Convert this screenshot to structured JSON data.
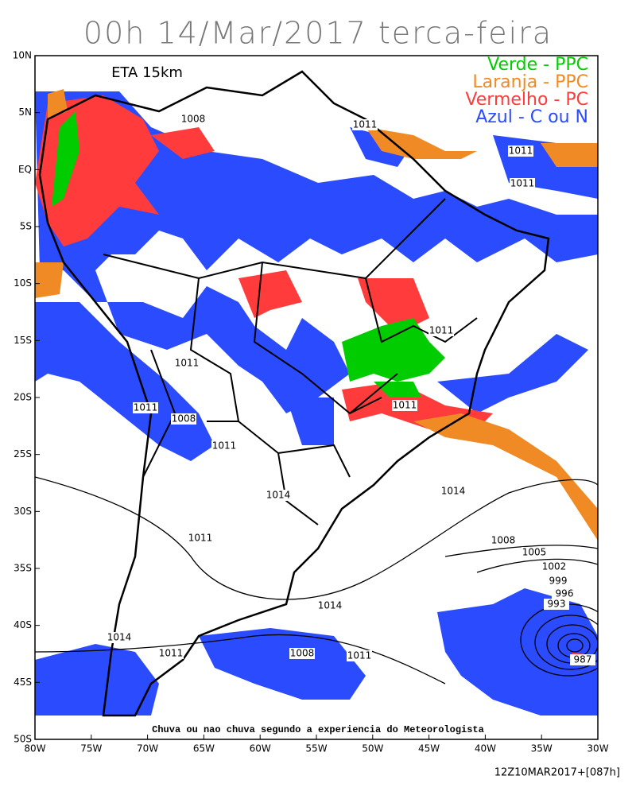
{
  "chart_data": {
    "type": "map",
    "title": "00h 14/Mar/2017 terca-feira",
    "subtitle": "ETA 15km",
    "legend": [
      {
        "name": "Verde - PPC",
        "color": "#00cc00"
      },
      {
        "name": "Laranja - PPC",
        "color": "#f08a24"
      },
      {
        "name": "Vermelho - PC",
        "color": "#ff3b3b"
      },
      {
        "name": "Azul - C ou N",
        "color": "#2b4bff"
      }
    ],
    "footnote": "Chuva ou nao chuva segundo a experiencia do Meteorologista",
    "run": "12Z10MAR2017+[087h]",
    "xlim": [
      -80,
      -30
    ],
    "ylim": [
      -50,
      10
    ],
    "xticks": [
      {
        "value": -80,
        "label": "80W"
      },
      {
        "value": -75,
        "label": "75W"
      },
      {
        "value": -70,
        "label": "70W"
      },
      {
        "value": -65,
        "label": "65W"
      },
      {
        "value": -60,
        "label": "60W"
      },
      {
        "value": -55,
        "label": "55W"
      },
      {
        "value": -50,
        "label": "50W"
      },
      {
        "value": -45,
        "label": "45W"
      },
      {
        "value": -40,
        "label": "40W"
      },
      {
        "value": -35,
        "label": "35W"
      },
      {
        "value": -30,
        "label": "30W"
      }
    ],
    "yticks": [
      {
        "value": 10,
        "label": "10N"
      },
      {
        "value": 5,
        "label": "5N"
      },
      {
        "value": 0,
        "label": "EQ"
      },
      {
        "value": -5,
        "label": "5S"
      },
      {
        "value": -10,
        "label": "10S"
      },
      {
        "value": -15,
        "label": "15S"
      },
      {
        "value": -20,
        "label": "20S"
      },
      {
        "value": -25,
        "label": "25S"
      },
      {
        "value": -30,
        "label": "30S"
      },
      {
        "value": -35,
        "label": "35S"
      },
      {
        "value": -40,
        "label": "40S"
      },
      {
        "value": -45,
        "label": "45S"
      },
      {
        "value": -50,
        "label": "50S"
      }
    ],
    "isobar_labels": [
      1008,
      1011,
      1011,
      1011,
      1011,
      1011,
      1011,
      1008,
      1011,
      1011,
      1014,
      1014,
      1011,
      1008,
      1005,
      1002,
      999,
      996,
      993,
      1014,
      1014,
      1011,
      1008,
      1011,
      987
    ]
  }
}
